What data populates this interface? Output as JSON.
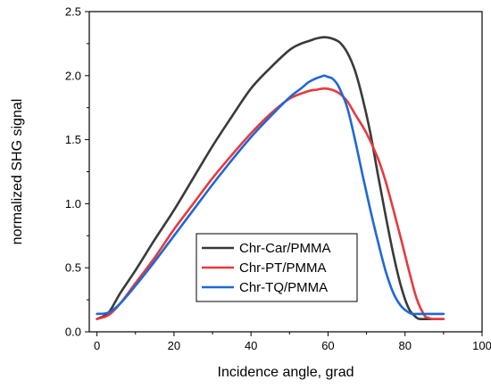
{
  "chart_data": {
    "type": "line",
    "title": "",
    "xlabel": "Incidence angle, grad",
    "ylabel": "normalized SHG signal",
    "xlim": [
      -2,
      100
    ],
    "ylim": [
      0,
      2.5
    ],
    "x_ticks": [
      0,
      20,
      40,
      60,
      80,
      100
    ],
    "y_ticks": [
      0.0,
      0.5,
      1.0,
      1.5,
      2.0,
      2.5
    ],
    "x_tick_labels": [
      "0",
      "20",
      "40",
      "60",
      "80",
      "100"
    ],
    "y_tick_labels": [
      "0.0",
      "0.5",
      "1.0",
      "1.5",
      "2.0",
      "2.5"
    ],
    "grid": false,
    "legend_position": "bottom-center",
    "series": [
      {
        "name": "Chr-Car/PMMA",
        "color": "#3a3a3a",
        "x": [
          0,
          3,
          6,
          10,
          15,
          20,
          25,
          30,
          35,
          40,
          45,
          50,
          53,
          55,
          57,
          59,
          61,
          63,
          65,
          67,
          69,
          71,
          73,
          75,
          77,
          79,
          81,
          83,
          84,
          85,
          86,
          88,
          90
        ],
        "y": [
          0.1,
          0.15,
          0.3,
          0.48,
          0.72,
          0.95,
          1.2,
          1.45,
          1.68,
          1.9,
          2.06,
          2.2,
          2.25,
          2.27,
          2.29,
          2.3,
          2.29,
          2.26,
          2.18,
          2.04,
          1.82,
          1.55,
          1.22,
          0.9,
          0.6,
          0.35,
          0.18,
          0.11,
          0.1,
          0.1,
          0.1,
          0.1,
          0.1
        ]
      },
      {
        "name": "Chr-PT/PMMA",
        "color": "#e8393b",
        "x": [
          0,
          3,
          6,
          10,
          15,
          20,
          25,
          30,
          35,
          40,
          45,
          50,
          55,
          57,
          59,
          61,
          63,
          65,
          67,
          70,
          73,
          75,
          77,
          79,
          81,
          83,
          85,
          86,
          87,
          88,
          90
        ],
        "y": [
          0.1,
          0.13,
          0.22,
          0.38,
          0.58,
          0.8,
          1.0,
          1.2,
          1.38,
          1.55,
          1.7,
          1.82,
          1.88,
          1.89,
          1.9,
          1.89,
          1.86,
          1.8,
          1.7,
          1.55,
          1.35,
          1.17,
          0.95,
          0.72,
          0.48,
          0.26,
          0.13,
          0.11,
          0.1,
          0.1,
          0.1
        ]
      },
      {
        "name": "Chr-TQ/PMMA",
        "color": "#1f67d8",
        "x": [
          0,
          3,
          6,
          10,
          15,
          20,
          25,
          30,
          35,
          40,
          45,
          50,
          53,
          55,
          57,
          58,
          59,
          60,
          61,
          62,
          63,
          65,
          67,
          69,
          71,
          73,
          75,
          77,
          79,
          81,
          82,
          83,
          85,
          87,
          90
        ],
        "y": [
          0.14,
          0.15,
          0.22,
          0.36,
          0.55,
          0.75,
          0.95,
          1.15,
          1.34,
          1.52,
          1.68,
          1.83,
          1.9,
          1.95,
          1.98,
          1.99,
          2.0,
          1.99,
          1.98,
          1.95,
          1.9,
          1.75,
          1.5,
          1.22,
          0.95,
          0.7,
          0.47,
          0.3,
          0.2,
          0.15,
          0.14,
          0.14,
          0.14,
          0.14,
          0.14
        ]
      }
    ]
  }
}
